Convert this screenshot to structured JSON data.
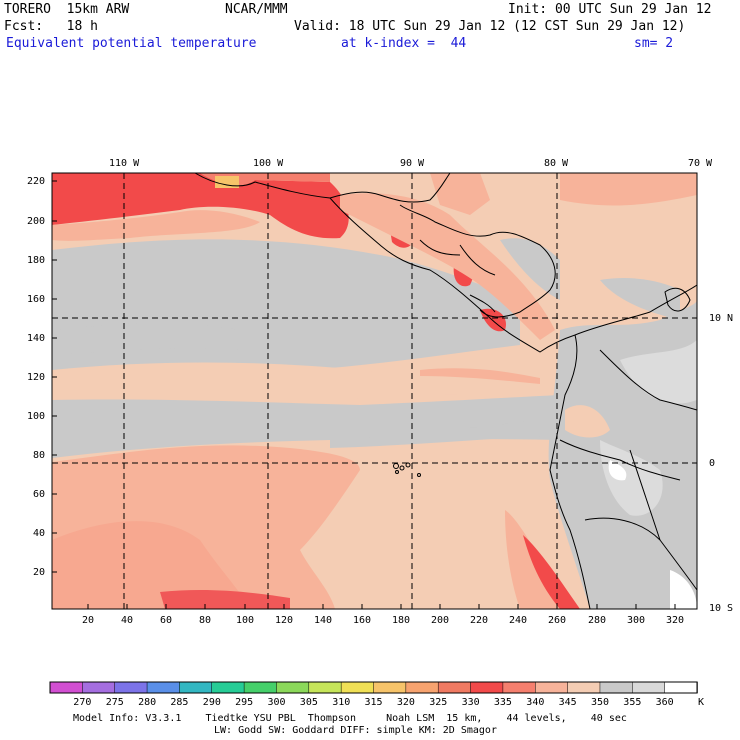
{
  "header": {
    "model": "TORERO  15km ARW",
    "center": "NCAR/MMM",
    "init": "Init: 00 UTC Sun 29 Jan 12",
    "fcst_label": "Fcst:   18 h",
    "valid": "Valid: 18 UTC Sun 29 Jan 12 (12 CST Sun 29 Jan 12)",
    "field": "Equivalent potential temperature",
    "level": "at k-index =  44",
    "smooth": "sm= 2"
  },
  "map": {
    "lon_labels": [
      "110 W",
      "100 W",
      "90 W",
      "80 W",
      "70 W"
    ],
    "lat_labels": [
      "10 N",
      "0",
      "10 S"
    ],
    "y_ticks": [
      "220",
      "200",
      "180",
      "160",
      "140",
      "120",
      "100",
      "80",
      "60",
      "40",
      "20"
    ],
    "x_ticks": [
      "20",
      "40",
      "60",
      "80",
      "100",
      "120",
      "140",
      "160",
      "180",
      "200",
      "220",
      "240",
      "260",
      "280",
      "300",
      "320"
    ]
  },
  "colorbar": {
    "labels": [
      "270",
      "275",
      "280",
      "285",
      "290",
      "295",
      "300",
      "305",
      "310",
      "315",
      "320",
      "325",
      "330",
      "335",
      "340",
      "345",
      "350",
      "355",
      "360"
    ],
    "unit": "K",
    "colors": [
      "#d24fd2",
      "#a56ee0",
      "#7c73e8",
      "#5a8fe8",
      "#33b7c2",
      "#26cc96",
      "#45cf6a",
      "#8bd85a",
      "#c6e55a",
      "#f0e056",
      "#f7c46a",
      "#f7a36f",
      "#f07a62",
      "#f24a4a",
      "#f57f6e",
      "#f7b39a",
      "#f4cdb4",
      "#c9c9c9",
      "#d9d9d9",
      "#ffffff"
    ]
  },
  "footer": {
    "line1": "Model Info: V3.3.1    Tiedtke YSU PBL  Thompson     Noah LSM  15 km,    44 levels,    40 sec",
    "line2": "LW: Godd SW: Goddard DIFF: simple KM: 2D Smagor"
  }
}
